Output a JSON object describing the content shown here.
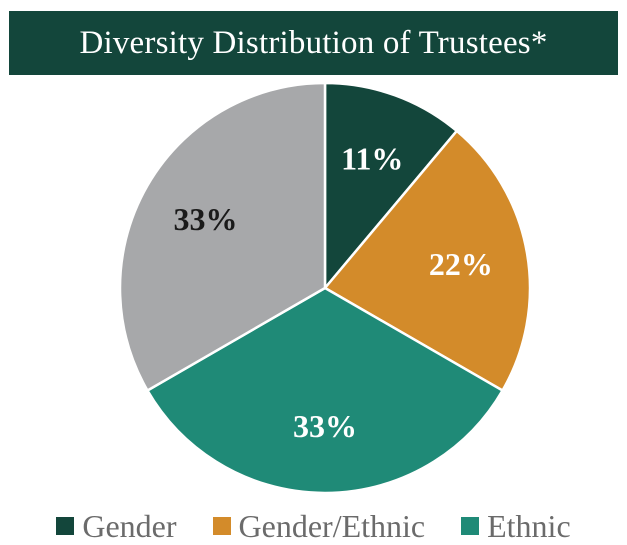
{
  "chart_data": {
    "type": "pie",
    "title": "Diversity Distribution of Trustees*",
    "slices": [
      {
        "name": "Gender",
        "value": 11,
        "label": "11%",
        "color": "#13463b",
        "label_color": "#ffffff"
      },
      {
        "name": "Gender/Ethnic",
        "value": 22,
        "label": "22%",
        "color": "#d38b2a",
        "label_color": "#ffffff"
      },
      {
        "name": "Ethnic",
        "value": 33,
        "label": "33%",
        "color": "#1f8a77",
        "label_color": "#ffffff"
      },
      {
        "name": "",
        "value": 33,
        "label": "33%",
        "color": "#a7a8aa",
        "label_color": "#1a1a1a"
      }
    ],
    "start_angle_deg": 0,
    "direction": "clockwise",
    "legend_position": "bottom"
  }
}
